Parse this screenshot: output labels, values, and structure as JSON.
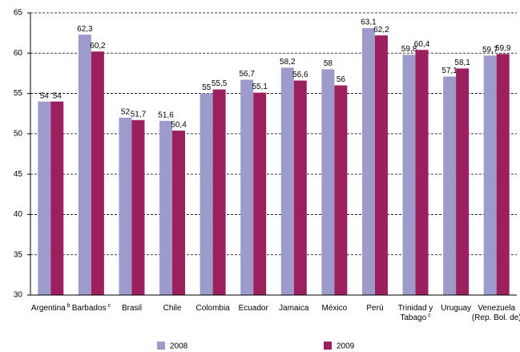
{
  "chart_data": {
    "type": "bar",
    "categories": [
      [
        "Argentina"
      ],
      [
        "Barbados"
      ],
      [
        "Brasil"
      ],
      [
        "Chile"
      ],
      [
        "Colombia"
      ],
      [
        "Ecuador"
      ],
      [
        "Jamaica"
      ],
      [
        "México"
      ],
      [
        "Perú"
      ],
      [
        "Trinidad y",
        "Tabago"
      ],
      [
        "Uruguay"
      ],
      [
        "Venezuela",
        "(Rep. Bol. de)"
      ]
    ],
    "category_notes": [
      "b",
      "c",
      null,
      null,
      null,
      null,
      null,
      null,
      null,
      "c",
      null,
      null
    ],
    "series": [
      {
        "name": "2008",
        "color": "#9d9bcc",
        "values": [
          54,
          62.3,
          52,
          51.6,
          55,
          56.7,
          58.2,
          58,
          63.1,
          59.8,
          57.1,
          59.7
        ],
        "value_labels": [
          "54",
          "62,3",
          "52",
          "51,6",
          "55",
          "56,7",
          "58,2",
          "58",
          "63,1",
          "59,8",
          "57,1",
          "59,7"
        ]
      },
      {
        "name": "2009",
        "color": "#9c1f5e",
        "values": [
          54,
          60.2,
          51.7,
          50.4,
          55.5,
          55.1,
          56.6,
          56,
          62.2,
          60.4,
          58.1,
          59.9
        ],
        "value_labels": [
          "54",
          "60,2",
          "51,7",
          "50,4",
          "55,5",
          "55,1",
          "56,6",
          "56",
          "62,2",
          "60,4",
          "58,1",
          "59,9"
        ]
      }
    ],
    "ylim": [
      30,
      65
    ],
    "yticks": [
      30,
      35,
      40,
      45,
      50,
      55,
      60,
      65
    ],
    "grid": true
  }
}
